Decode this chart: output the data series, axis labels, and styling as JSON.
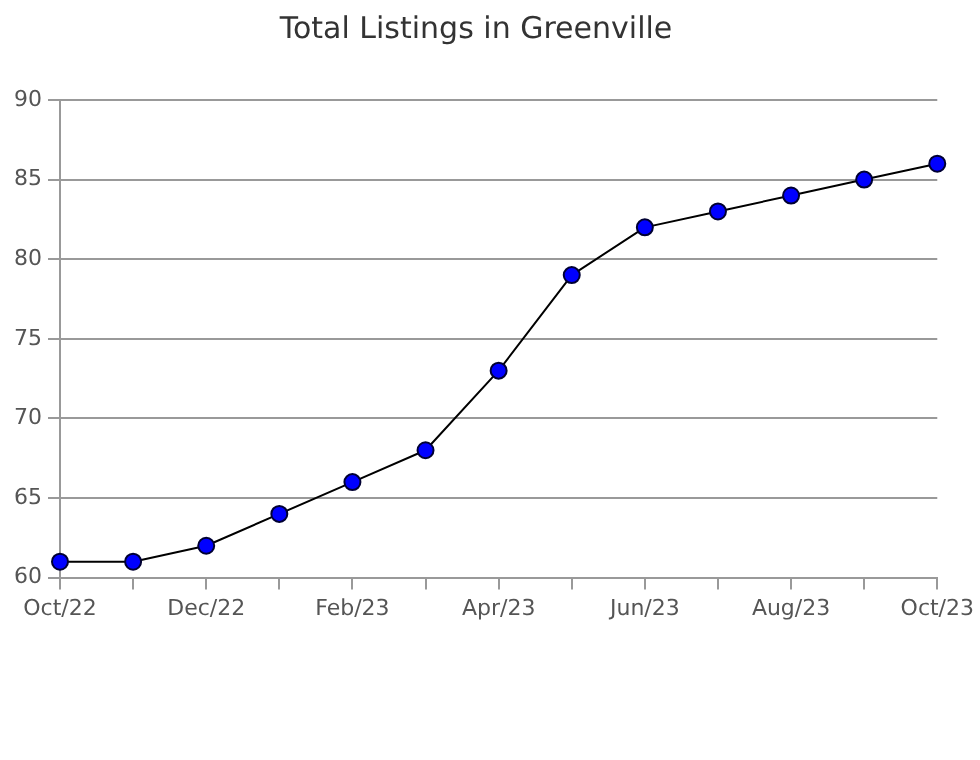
{
  "chart_data": {
    "type": "line",
    "title": "Total Listings in Greenville",
    "categories": [
      "Oct/22",
      null,
      "Dec/22",
      null,
      "Feb/23",
      null,
      "Apr/23",
      null,
      "Jun/23",
      null,
      "Aug/23",
      null,
      "Oct/23"
    ],
    "series": [
      {
        "color": "#0000ff",
        "values": [
          61,
          61,
          62,
          64,
          66,
          68,
          73,
          79,
          82,
          83,
          84,
          85,
          86
        ]
      }
    ],
    "ylim": [
      60,
      90
    ],
    "yticks": [
      60,
      65,
      70,
      75,
      80,
      85,
      90
    ],
    "grid": "y",
    "legend": false,
    "marker": "circle",
    "line_style": "solid"
  }
}
